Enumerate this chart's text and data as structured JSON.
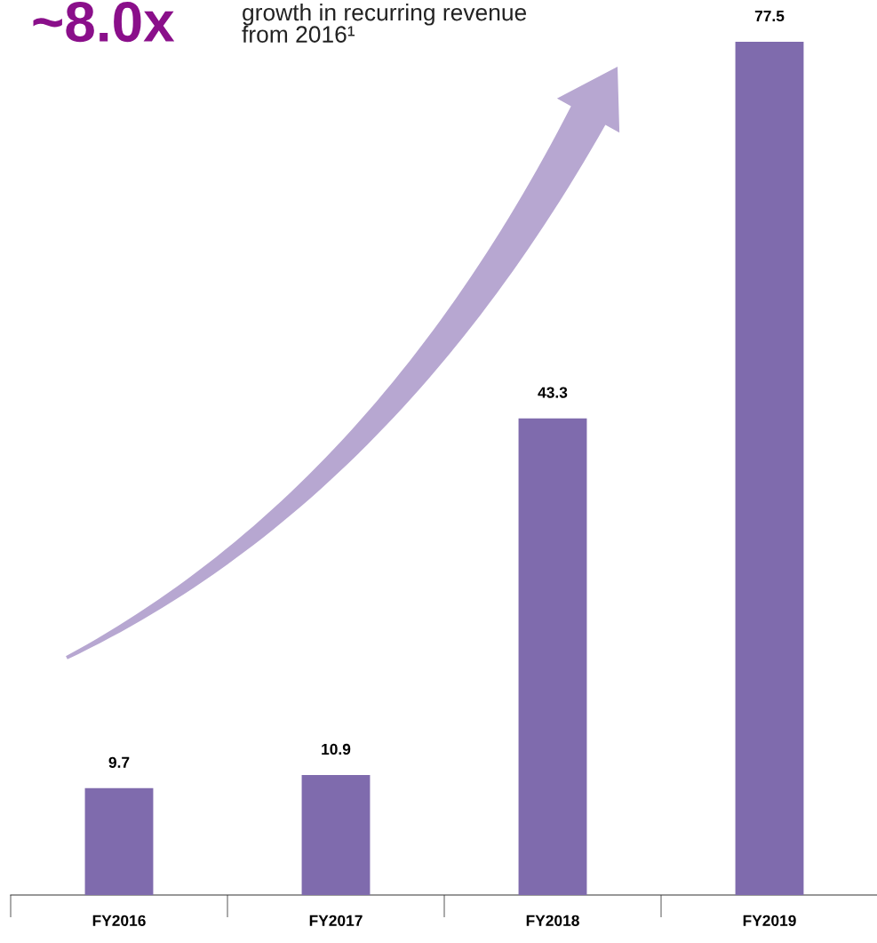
{
  "chart_data": {
    "type": "bar",
    "categories": [
      "FY2016",
      "FY2017",
      "FY2018",
      "FY2019"
    ],
    "values": [
      9.7,
      10.9,
      43.3,
      77.5
    ],
    "color": "#7f6bad",
    "data_labels": true,
    "grid": false,
    "legend": false,
    "tick_labels": "x",
    "annotations": [
      "~8.0x",
      "growth in recurring revenue\nfrom 2016¹"
    ]
  }
}
